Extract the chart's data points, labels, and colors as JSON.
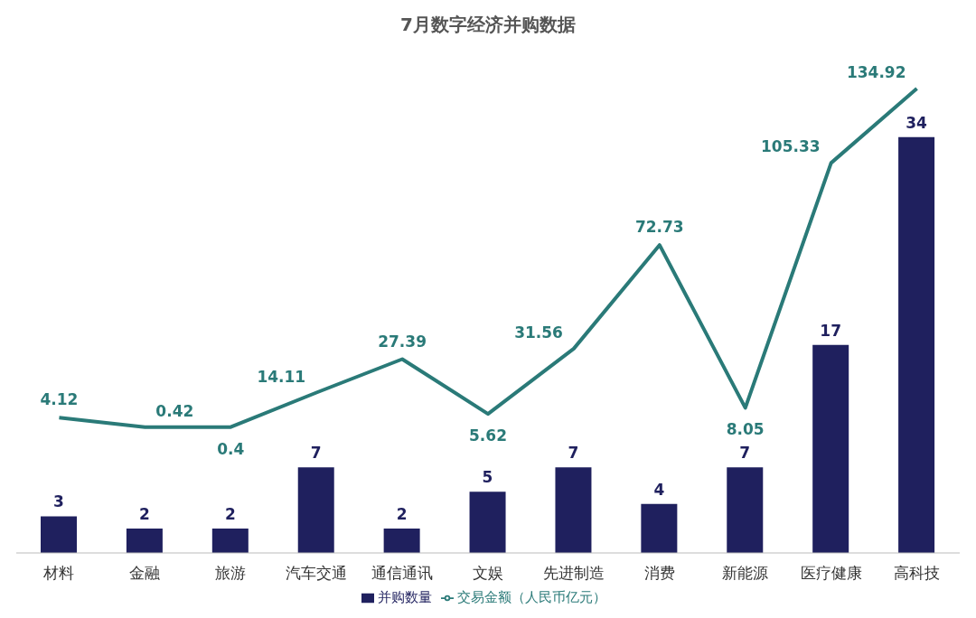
{
  "chart_data": {
    "type": "bar",
    "title": "7月数字经济并购数据",
    "categories": [
      "材料",
      "金融",
      "旅游",
      "汽车交通",
      "通信通讯",
      "文娱",
      "先进制造",
      "消费",
      "新能源",
      "医疗健康",
      "高科技"
    ],
    "series": [
      {
        "name": "并购数量",
        "color": "#1f205e",
        "values": [
          3,
          2,
          2,
          7,
          2,
          5,
          7,
          4,
          7,
          17,
          34
        ]
      },
      {
        "name": "交易金额（人民币亿元）",
        "type": "line",
        "axis": "y2",
        "color": "#2a7a78",
        "values": [
          4.12,
          0.42,
          0.4,
          14.11,
          27.39,
          5.62,
          31.56,
          72.73,
          8.05,
          105.33,
          134.92
        ]
      }
    ],
    "data_labels": true,
    "grid": false,
    "legend": "bottom",
    "marker": "none",
    "line_style": "solid"
  }
}
